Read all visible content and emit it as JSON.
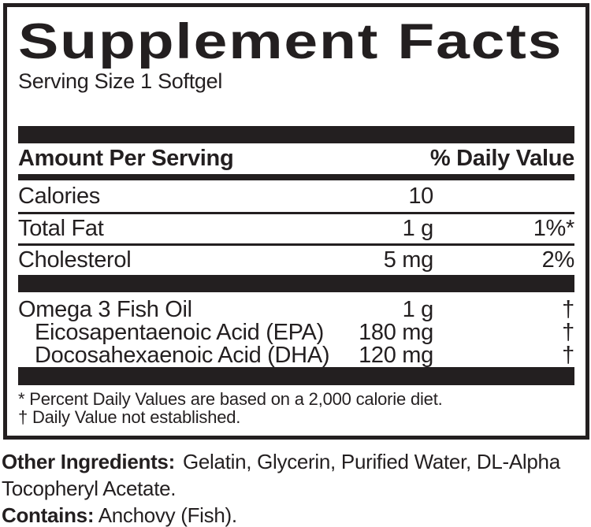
{
  "colors": {
    "ink": "#231f20",
    "background": "#ffffff"
  },
  "panel": {
    "title": "Supplement Facts",
    "serving_size": "Serving Size 1 Softgel",
    "columns": {
      "amount_header": "Amount Per Serving",
      "dv_header": "% Daily Value"
    },
    "main_rows": [
      {
        "name": "Calories",
        "amount": "10",
        "dv": ""
      },
      {
        "name": "Total Fat",
        "amount": "1 g",
        "dv": "1%*"
      },
      {
        "name": "Cholesterol",
        "amount": "5 mg",
        "dv": "2%"
      }
    ],
    "omega_rows": [
      {
        "name": "Omega 3 Fish Oil",
        "amount": "1 g",
        "dv": "†"
      },
      {
        "name": "Eicosapentaenoic Acid (EPA)",
        "amount": "180 mg",
        "dv": "†"
      },
      {
        "name": "Docosahexaenoic Acid (DHA)",
        "amount": "120 mg",
        "dv": "†"
      }
    ],
    "footnotes": [
      "* Percent Daily Values are based on a 2,000 calorie diet.",
      "† Daily Value not established."
    ]
  },
  "below_panel": {
    "other_ingredients_label": "Other Ingredients:",
    "other_ingredients": "Gelatin, Glycerin, Purified Water, DL-Alpha Tocopheryl Acetate.",
    "contains_label": "Contains:",
    "contains": "Anchovy (Fish)."
  }
}
